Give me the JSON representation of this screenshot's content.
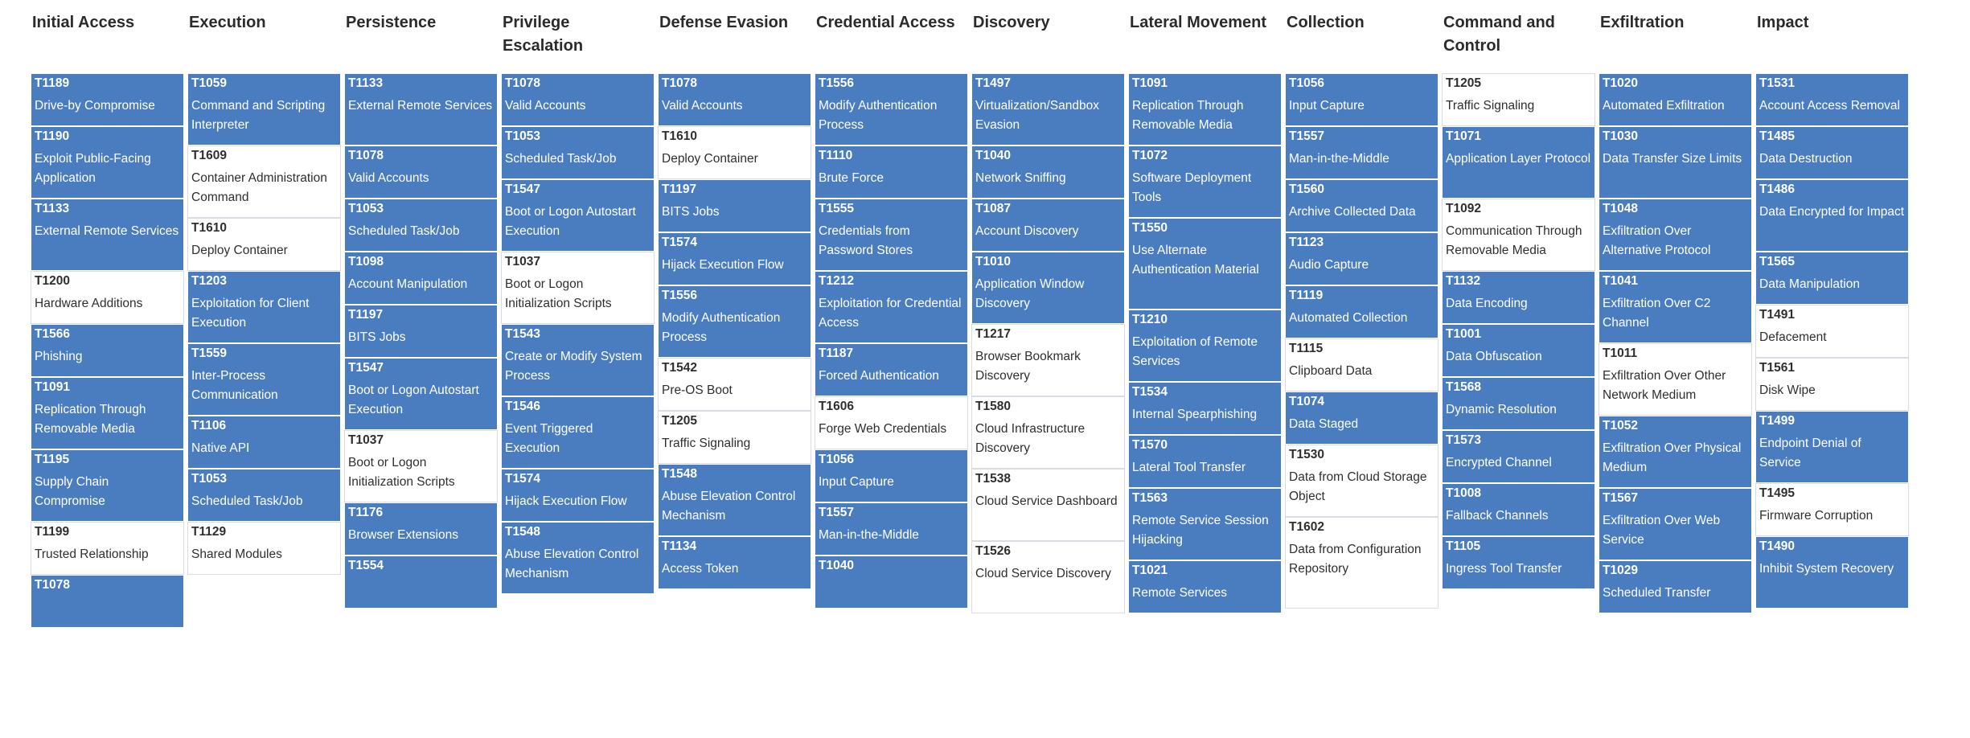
{
  "tactics": [
    {
      "name": "Initial Access",
      "techniques": [
        {
          "id": "T1189",
          "name": "Drive-by Compromise"
        },
        {
          "id": "T1190",
          "name": "Exploit Public-Facing Application"
        },
        {
          "id": "T1133",
          "name": "External Remote Services"
        },
        {
          "id": "T1200",
          "name": "Hardware Additions",
          "light": true
        },
        {
          "id": "T1566",
          "name": "Phishing"
        },
        {
          "id": "T1091",
          "name": "Replication Through Removable Media"
        },
        {
          "id": "T1195",
          "name": "Supply Chain Compromise"
        },
        {
          "id": "T1199",
          "name": "Trusted Relationship",
          "light": true
        },
        {
          "id": "T1078",
          "name": ""
        }
      ]
    },
    {
      "name": "Execution",
      "techniques": [
        {
          "id": "T1059",
          "name": "Command and Scripting Interpreter"
        },
        {
          "id": "T1609",
          "name": "Container Administration Command",
          "light": true
        },
        {
          "id": "T1610",
          "name": "Deploy Container",
          "light": true
        },
        {
          "id": "T1203",
          "name": "Exploitation for Client Execution"
        },
        {
          "id": "T1559",
          "name": "Inter-Process Communication"
        },
        {
          "id": "T1106",
          "name": "Native API"
        },
        {
          "id": "T1053",
          "name": "Scheduled Task/Job"
        },
        {
          "id": "T1129",
          "name": "Shared Modules",
          "light": true
        }
      ]
    },
    {
      "name": "Persistence",
      "techniques": [
        {
          "id": "T1133",
          "name": "External Remote Services"
        },
        {
          "id": "T1078",
          "name": "Valid Accounts"
        },
        {
          "id": "T1053",
          "name": "Scheduled Task/Job"
        },
        {
          "id": "T1098",
          "name": "Account Manipulation"
        },
        {
          "id": "T1197",
          "name": "BITS Jobs"
        },
        {
          "id": "T1547",
          "name": "Boot or Logon Autostart Execution"
        },
        {
          "id": "T1037",
          "name": "Boot or Logon Initialization Scripts",
          "light": true
        },
        {
          "id": "T1176",
          "name": "Browser Extensions"
        },
        {
          "id": "T1554",
          "name": ""
        }
      ]
    },
    {
      "name": "Privilege Escalation",
      "techniques": [
        {
          "id": "T1078",
          "name": "Valid Accounts"
        },
        {
          "id": "T1053",
          "name": "Scheduled Task/Job"
        },
        {
          "id": "T1547",
          "name": "Boot or Logon Autostart Execution"
        },
        {
          "id": "T1037",
          "name": "Boot or Logon Initialization Scripts",
          "light": true
        },
        {
          "id": "T1543",
          "name": "Create or Modify System Process"
        },
        {
          "id": "T1546",
          "name": "Event Triggered Execution"
        },
        {
          "id": "T1574",
          "name": "Hijack Execution Flow"
        },
        {
          "id": "T1548",
          "name": "Abuse Elevation Control Mechanism"
        }
      ]
    },
    {
      "name": "Defense Evasion",
      "techniques": [
        {
          "id": "T1078",
          "name": "Valid Accounts"
        },
        {
          "id": "T1610",
          "name": "Deploy Container",
          "light": true
        },
        {
          "id": "T1197",
          "name": "BITS Jobs"
        },
        {
          "id": "T1574",
          "name": "Hijack Execution Flow"
        },
        {
          "id": "T1556",
          "name": "Modify Authentication Process"
        },
        {
          "id": "T1542",
          "name": "Pre-OS Boot",
          "light": true
        },
        {
          "id": "T1205",
          "name": "Traffic Signaling",
          "light": true
        },
        {
          "id": "T1548",
          "name": "Abuse Elevation Control Mechanism"
        },
        {
          "id": "T1134",
          "name": "Access Token"
        }
      ]
    },
    {
      "name": "Credential Access",
      "techniques": [
        {
          "id": "T1556",
          "name": "Modify Authentication Process"
        },
        {
          "id": "T1110",
          "name": "Brute Force"
        },
        {
          "id": "T1555",
          "name": "Credentials from Password Stores"
        },
        {
          "id": "T1212",
          "name": "Exploitation for Credential Access"
        },
        {
          "id": "T1187",
          "name": "Forced Authentication"
        },
        {
          "id": "T1606",
          "name": "Forge Web Credentials",
          "light": true
        },
        {
          "id": "T1056",
          "name": "Input Capture"
        },
        {
          "id": "T1557",
          "name": "Man-in-the-Middle"
        },
        {
          "id": "T1040",
          "name": ""
        }
      ]
    },
    {
      "name": "Discovery",
      "techniques": [
        {
          "id": "T1497",
          "name": "Virtualization/Sandbox Evasion"
        },
        {
          "id": "T1040",
          "name": "Network Sniffing"
        },
        {
          "id": "T1087",
          "name": "Account Discovery"
        },
        {
          "id": "T1010",
          "name": "Application Window Discovery"
        },
        {
          "id": "T1217",
          "name": "Browser Bookmark Discovery",
          "light": true
        },
        {
          "id": "T1580",
          "name": "Cloud Infrastructure Discovery",
          "light": true
        },
        {
          "id": "T1538",
          "name": "Cloud Service Dashboard",
          "light": true
        },
        {
          "id": "T1526",
          "name": "Cloud Service Discovery",
          "light": true
        }
      ]
    },
    {
      "name": "Lateral Movement",
      "techniques": [
        {
          "id": "T1091",
          "name": "Replication Through Removable Media"
        },
        {
          "id": "T1072",
          "name": "Software Deployment Tools"
        },
        {
          "id": "T1550",
          "name": "Use Alternate Authentication Material"
        },
        {
          "id": "T1210",
          "name": "Exploitation of Remote Services"
        },
        {
          "id": "T1534",
          "name": "Internal Spearphishing"
        },
        {
          "id": "T1570",
          "name": "Lateral Tool Transfer"
        },
        {
          "id": "T1563",
          "name": "Remote Service Session Hijacking"
        },
        {
          "id": "T1021",
          "name": "Remote Services"
        }
      ]
    },
    {
      "name": "Collection",
      "techniques": [
        {
          "id": "T1056",
          "name": "Input Capture"
        },
        {
          "id": "T1557",
          "name": "Man-in-the-Middle"
        },
        {
          "id": "T1560",
          "name": "Archive Collected Data"
        },
        {
          "id": "T1123",
          "name": "Audio Capture"
        },
        {
          "id": "T1119",
          "name": "Automated Collection"
        },
        {
          "id": "T1115",
          "name": "Clipboard Data",
          "light": true
        },
        {
          "id": "T1074",
          "name": "Data Staged"
        },
        {
          "id": "T1530",
          "name": "Data from Cloud Storage Object",
          "light": true
        },
        {
          "id": "T1602",
          "name": "Data from Configuration Repository",
          "light": true
        }
      ]
    },
    {
      "name": "Command and Control",
      "techniques": [
        {
          "id": "T1205",
          "name": "Traffic Signaling",
          "light": true
        },
        {
          "id": "T1071",
          "name": "Application Layer Protocol"
        },
        {
          "id": "T1092",
          "name": "Communication Through Removable Media",
          "light": true
        },
        {
          "id": "T1132",
          "name": "Data Encoding"
        },
        {
          "id": "T1001",
          "name": "Data Obfuscation"
        },
        {
          "id": "T1568",
          "name": "Dynamic Resolution"
        },
        {
          "id": "T1573",
          "name": "Encrypted Channel"
        },
        {
          "id": "T1008",
          "name": "Fallback Channels"
        },
        {
          "id": "T1105",
          "name": "Ingress Tool Transfer"
        }
      ]
    },
    {
      "name": "Exfiltration",
      "techniques": [
        {
          "id": "T1020",
          "name": "Automated Exfiltration"
        },
        {
          "id": "T1030",
          "name": "Data Transfer Size Limits"
        },
        {
          "id": "T1048",
          "name": "Exfiltration Over Alternative Protocol"
        },
        {
          "id": "T1041",
          "name": "Exfiltration Over C2 Channel"
        },
        {
          "id": "T1011",
          "name": "Exfiltration Over Other Network Medium",
          "light": true
        },
        {
          "id": "T1052",
          "name": "Exfiltration Over Physical Medium"
        },
        {
          "id": "T1567",
          "name": "Exfiltration Over Web Service"
        },
        {
          "id": "T1029",
          "name": "Scheduled Transfer"
        }
      ]
    },
    {
      "name": "Impact",
      "techniques": [
        {
          "id": "T1531",
          "name": "Account Access Removal"
        },
        {
          "id": "T1485",
          "name": "Data Destruction"
        },
        {
          "id": "T1486",
          "name": "Data Encrypted for Impact"
        },
        {
          "id": "T1565",
          "name": "Data Manipulation"
        },
        {
          "id": "T1491",
          "name": "Defacement",
          "light": true
        },
        {
          "id": "T1561",
          "name": "Disk Wipe",
          "light": true
        },
        {
          "id": "T1499",
          "name": "Endpoint Denial of Service"
        },
        {
          "id": "T1495",
          "name": "Firmware Corruption",
          "light": true
        },
        {
          "id": "T1490",
          "name": "Inhibit System Recovery"
        }
      ]
    }
  ]
}
